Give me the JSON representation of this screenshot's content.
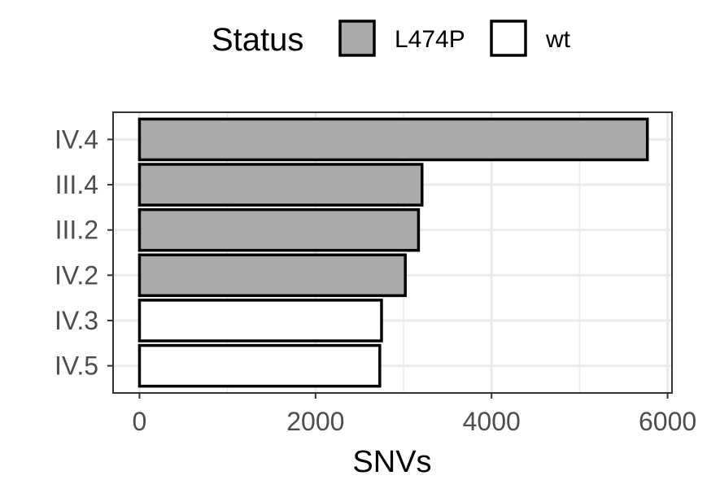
{
  "chart_data": {
    "type": "bar",
    "orientation": "horizontal",
    "categories": [
      "IV.4",
      "III.4",
      "III.2",
      "IV.2",
      "IV.3",
      "IV.5"
    ],
    "values": [
      5770,
      3210,
      3170,
      3020,
      2750,
      2730
    ],
    "status": [
      "L474P",
      "L474P",
      "L474P",
      "L474P",
      "wt",
      "wt"
    ],
    "xlabel": "SNVs",
    "ylabel": "",
    "xlim": [
      -300,
      6050
    ],
    "xticks": [
      0,
      2000,
      4000,
      6000
    ],
    "xtick_labels": [
      "0",
      "2000",
      "4000",
      "6000"
    ],
    "grid": true,
    "legend": {
      "title": "Status",
      "position": "top",
      "entries": [
        {
          "label": "L474P",
          "color": "#aaaaaa"
        },
        {
          "label": "wt",
          "color": "#ffffff"
        }
      ]
    },
    "colors": {
      "L474P": "#aaaaaa",
      "wt": "#ffffff",
      "bar_outline": "#000000",
      "grid": "#ebebeb",
      "panel_border": "#333333"
    }
  }
}
